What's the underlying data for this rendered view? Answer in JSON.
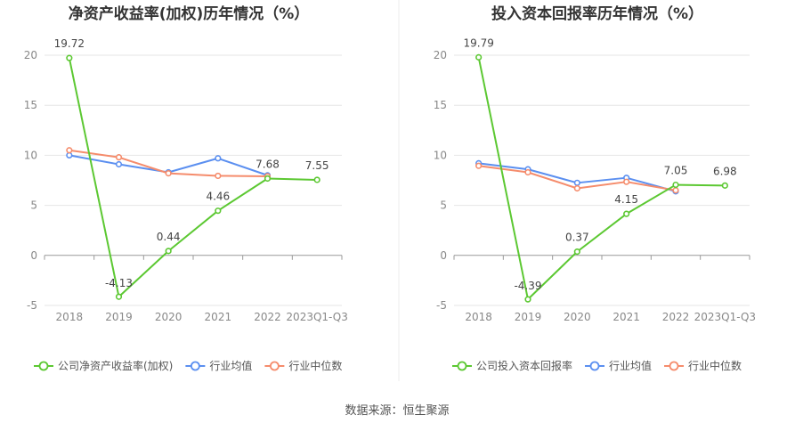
{
  "source_label": "数据来源：恒生聚源",
  "chart_data": [
    {
      "type": "line",
      "title": "净资产收益率(加权)历年情况（%）",
      "categories": [
        "2018",
        "2019",
        "2020",
        "2021",
        "2022",
        "2023Q1-Q3"
      ],
      "ylim": [
        -5,
        20
      ],
      "yticks": [
        -5,
        0,
        5,
        10,
        15,
        20
      ],
      "grid": true,
      "legend_position": "bottom",
      "series": [
        {
          "name": "公司净资产收益率(加权)",
          "color": "#5cc832",
          "values": [
            19.72,
            -4.13,
            0.44,
            4.46,
            7.68,
            7.55
          ],
          "labels": [
            "19.72",
            "-4.13",
            "0.44",
            "4.46",
            "7.68",
            "7.55"
          ]
        },
        {
          "name": "行业均值",
          "color": "#5b8ff0",
          "values": [
            10.0,
            9.1,
            8.3,
            9.7,
            8.0,
            null
          ]
        },
        {
          "name": "行业中位数",
          "color": "#f58c6c",
          "values": [
            10.5,
            9.8,
            8.2,
            7.95,
            7.9,
            null
          ]
        }
      ]
    },
    {
      "type": "line",
      "title": "投入资本回报率历年情况（%）",
      "categories": [
        "2018",
        "2019",
        "2020",
        "2021",
        "2022",
        "2023Q1-Q3"
      ],
      "ylim": [
        -5,
        20
      ],
      "yticks": [
        -5,
        0,
        5,
        10,
        15,
        20
      ],
      "grid": true,
      "legend_position": "bottom",
      "series": [
        {
          "name": "公司投入资本回报率",
          "color": "#5cc832",
          "values": [
            19.79,
            -4.39,
            0.37,
            4.15,
            7.05,
            6.98
          ],
          "labels": [
            "19.79",
            "-4.39",
            "0.37",
            "4.15",
            "7.05",
            "6.98"
          ]
        },
        {
          "name": "行业均值",
          "color": "#5b8ff0",
          "values": [
            9.2,
            8.6,
            7.25,
            7.75,
            6.4,
            null
          ]
        },
        {
          "name": "行业中位数",
          "color": "#f58c6c",
          "values": [
            8.95,
            8.3,
            6.7,
            7.35,
            6.5,
            null
          ]
        }
      ]
    }
  ]
}
